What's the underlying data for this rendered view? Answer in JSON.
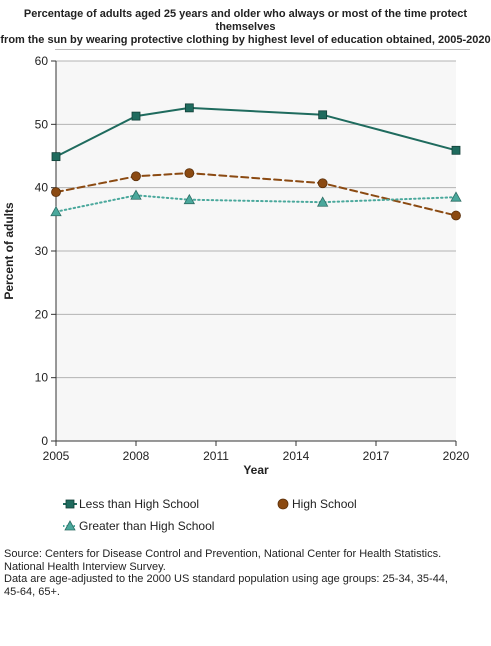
{
  "title": {
    "lines": [
      "Percentage of adults aged 25 years and older who always or most of the time protect",
      "themselves",
      "from the sun by wearing protective clothing by highest level of education obtained, 2005-2020"
    ]
  },
  "chart_data": {
    "type": "line",
    "title": "Percentage of adults aged 25 years and older who always or most of the time protect themselves from the sun by wearing protective clothing by highest level of education obtained, 2005-2020",
    "xlabel": "Year",
    "ylabel": "Percent of adults",
    "xlim": [
      2005,
      2020
    ],
    "ylim": [
      0,
      60
    ],
    "xticks": [
      2005,
      2008,
      2011,
      2014,
      2017,
      2020
    ],
    "yticks": [
      0,
      10,
      20,
      30,
      40,
      50,
      60
    ],
    "grid": true,
    "legend_position": "bottom",
    "series": [
      {
        "name": "Less than High School",
        "color": "#1f6b5e",
        "line_style": "solid",
        "marker": "square",
        "x": [
          2005,
          2008,
          2010,
          2015,
          2020
        ],
        "y": [
          44.9,
          51.3,
          52.6,
          51.5,
          45.9
        ]
      },
      {
        "name": "High School",
        "color": "#8b4a12",
        "line_style": "dashed",
        "marker": "circle",
        "x": [
          2005,
          2008,
          2010,
          2015,
          2020
        ],
        "y": [
          39.3,
          41.8,
          42.3,
          40.7,
          35.6
        ]
      },
      {
        "name": "Greater than High School",
        "color": "#4aa89c",
        "line_style": "dotted",
        "marker": "triangle",
        "x": [
          2005,
          2008,
          2010,
          2015,
          2020
        ],
        "y": [
          36.2,
          38.8,
          38.1,
          37.7,
          38.5
        ]
      }
    ]
  },
  "footnote": {
    "lines": [
      "Source: Centers for Disease Control and Prevention, National Center for Health Statistics.",
      "National Health Interview Survey.",
      "Data are age-adjusted to the 2000 US standard population using age groups: 25-34, 35-44,",
      "45-64, 65+."
    ]
  }
}
